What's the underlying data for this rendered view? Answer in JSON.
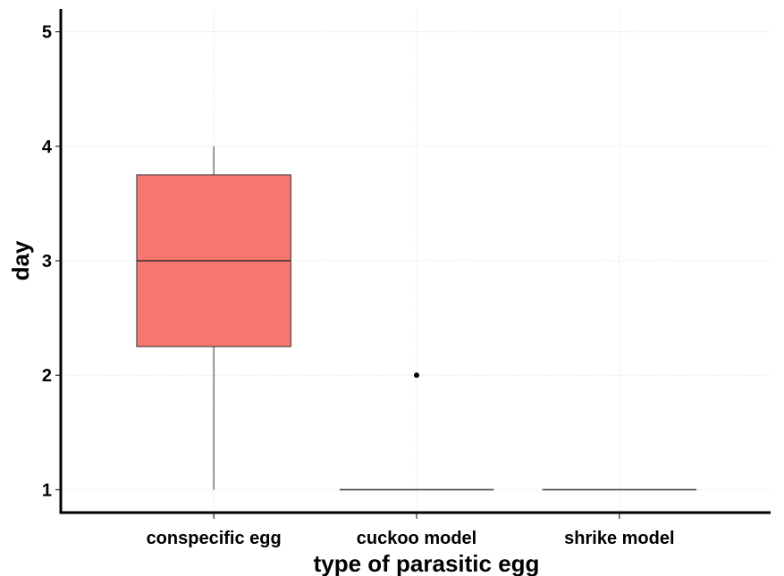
{
  "chart_data": {
    "type": "box",
    "xlabel": "type of parasitic egg",
    "ylabel": "day",
    "ylim": [
      0.8,
      5.2
    ],
    "yticks": [
      1,
      2,
      3,
      4,
      5
    ],
    "grid": true,
    "categories": [
      "conspecific egg",
      "cuckoo model",
      "shrike model"
    ],
    "boxes": [
      {
        "category": "conspecific egg",
        "min": 1,
        "q1": 2.25,
        "median": 3,
        "q3": 3.75,
        "max": 4,
        "outliers": []
      },
      {
        "category": "cuckoo model",
        "min": 1,
        "q1": 1,
        "median": 1,
        "q3": 1,
        "max": 1,
        "outliers": [
          2
        ]
      },
      {
        "category": "shrike model",
        "min": 1,
        "q1": 1,
        "median": 1,
        "q3": 1,
        "max": 1,
        "outliers": []
      }
    ],
    "colors": {
      "box_fill": "#F8766D",
      "box_stroke": "#333333",
      "axis": "#000000",
      "grid": "#e8e8e8"
    }
  }
}
